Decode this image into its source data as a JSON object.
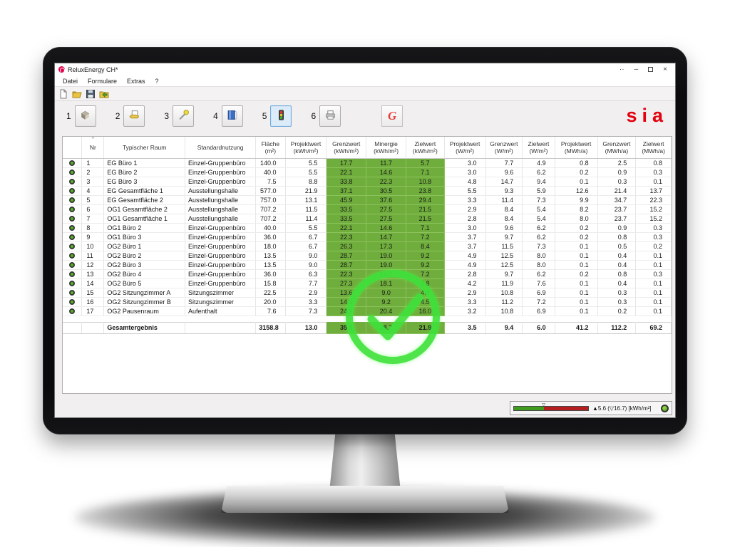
{
  "window": {
    "title": "ReluxEnergy CH*",
    "menus": [
      {
        "label": "Datei"
      },
      {
        "label": "Formulare"
      },
      {
        "label": "Extras"
      },
      {
        "label": "?"
      }
    ],
    "controls": {
      "more": "··",
      "minimize": "–",
      "close": "×"
    }
  },
  "toolbar": {
    "buttons": [
      {
        "num": "1",
        "icon": "building-icon",
        "selected": false
      },
      {
        "num": "2",
        "icon": "hand-document-icon",
        "selected": false
      },
      {
        "num": "3",
        "icon": "tool-icon",
        "selected": false
      },
      {
        "num": "4",
        "icon": "book-icon",
        "selected": false
      },
      {
        "num": "5",
        "icon": "traffic-light-icon",
        "selected": true
      },
      {
        "num": "6",
        "icon": "printer-icon",
        "selected": false
      }
    ],
    "g_button_label": "G",
    "brand": "sia"
  },
  "table": {
    "sort_indicator": "^",
    "headers": [
      {
        "line1": "Nr",
        "line2": ""
      },
      {
        "line1": "Typischer Raum",
        "line2": ""
      },
      {
        "line1": "Standardnutzung",
        "line2": ""
      },
      {
        "line1": "Fläche",
        "line2": "(m²)"
      },
      {
        "line1": "Projektwert",
        "line2": "(kWh/m²)"
      },
      {
        "line1": "Grenzwert",
        "line2": "(kWh/m²)"
      },
      {
        "line1": "Minergie",
        "line2": "(kWh/m²)"
      },
      {
        "line1": "Zielwert",
        "line2": "(kWh/m²)"
      },
      {
        "line1": "Projektwert",
        "line2": "(W/m²)"
      },
      {
        "line1": "Grenzwert",
        "line2": "(W/m²)"
      },
      {
        "line1": "Zielwert",
        "line2": "(W/m²)"
      },
      {
        "line1": "Projektwert",
        "line2": "(MWh/a)"
      },
      {
        "line1": "Grenzwert",
        "line2": "(MWh/a)"
      },
      {
        "line1": "Zielwert",
        "line2": "(MWh/a)"
      }
    ],
    "rows": [
      [
        "1",
        "EG Büro 1",
        "Einzel-Gruppenbüro",
        "140.0",
        "5.5",
        "17.7",
        "11.7",
        "5.7",
        "3.0",
        "7.7",
        "4.9",
        "0.8",
        "2.5",
        "0.8"
      ],
      [
        "2",
        "EG Büro 2",
        "Einzel-Gruppenbüro",
        "40.0",
        "5.5",
        "22.1",
        "14.6",
        "7.1",
        "3.0",
        "9.6",
        "6.2",
        "0.2",
        "0.9",
        "0.3"
      ],
      [
        "3",
        "EG Büro 3",
        "Einzel-Gruppenbüro",
        "7.5",
        "8.8",
        "33.8",
        "22.3",
        "10.8",
        "4.8",
        "14.7",
        "9.4",
        "0.1",
        "0.3",
        "0.1"
      ],
      [
        "4",
        "EG Gesamtfläche 1",
        "Ausstellungshalle",
        "577.0",
        "21.9",
        "37.1",
        "30.5",
        "23.8",
        "5.5",
        "9.3",
        "5.9",
        "12.6",
        "21.4",
        "13.7"
      ],
      [
        "5",
        "EG Gesamtfläche 2",
        "Ausstellungshalle",
        "757.0",
        "13.1",
        "45.9",
        "37.6",
        "29.4",
        "3.3",
        "11.4",
        "7.3",
        "9.9",
        "34.7",
        "22.3"
      ],
      [
        "6",
        "OG1 Gesamtfläche 2",
        "Ausstellungshalle",
        "707.2",
        "11.5",
        "33.5",
        "27.5",
        "21.5",
        "2.9",
        "8.4",
        "5.4",
        "8.2",
        "23.7",
        "15.2"
      ],
      [
        "7",
        "OG1 Gesamtfläche 1",
        "Ausstellungshalle",
        "707.2",
        "11.4",
        "33.5",
        "27.5",
        "21.5",
        "2.8",
        "8.4",
        "5.4",
        "8.0",
        "23.7",
        "15.2"
      ],
      [
        "8",
        "OG1 Büro 2",
        "Einzel-Gruppenbüro",
        "40.0",
        "5.5",
        "22.1",
        "14.6",
        "7.1",
        "3.0",
        "9.6",
        "6.2",
        "0.2",
        "0.9",
        "0.3"
      ],
      [
        "9",
        "OG1 Büro 3",
        "Einzel-Gruppenbüro",
        "36.0",
        "6.7",
        "22.3",
        "14.7",
        "7.2",
        "3.7",
        "9.7",
        "6.2",
        "0.2",
        "0.8",
        "0.3"
      ],
      [
        "10",
        "OG2 Büro 1",
        "Einzel-Gruppenbüro",
        "18.0",
        "6.7",
        "26.3",
        "17.3",
        "8.4",
        "3.7",
        "11.5",
        "7.3",
        "0.1",
        "0.5",
        "0.2"
      ],
      [
        "11",
        "OG2 Büro 2",
        "Einzel-Gruppenbüro",
        "13.5",
        "9.0",
        "28.7",
        "19.0",
        "9.2",
        "4.9",
        "12.5",
        "8.0",
        "0.1",
        "0.4",
        "0.1"
      ],
      [
        "12",
        "OG2 Büro 3",
        "Einzel-Gruppenbüro",
        "13.5",
        "9.0",
        "28.7",
        "19.0",
        "9.2",
        "4.9",
        "12.5",
        "8.0",
        "0.1",
        "0.4",
        "0.1"
      ],
      [
        "13",
        "OG2 Büro 4",
        "Einzel-Gruppenbüro",
        "36.0",
        "6.3",
        "22.3",
        "14.7",
        "7.2",
        "2.8",
        "9.7",
        "6.2",
        "0.2",
        "0.8",
        "0.3"
      ],
      [
        "14",
        "OG2 Büro 5",
        "Einzel-Gruppenbüro",
        "15.8",
        "7.7",
        "27.3",
        "18.1",
        "8.8",
        "4.2",
        "11.9",
        "7.6",
        "0.1",
        "0.4",
        "0.1"
      ],
      [
        "15",
        "OG2 Sitzungzimmer A",
        "Sitzungszimmer",
        "22.5",
        "2.9",
        "13.6",
        "9.0",
        "4.4",
        "2.9",
        "10.8",
        "6.9",
        "0.1",
        "0.3",
        "0.1"
      ],
      [
        "16",
        "OG2 Sitzungzimmer B",
        "Sitzungszimmer",
        "20.0",
        "3.3",
        "14.0",
        "9.2",
        "4.5",
        "3.3",
        "11.2",
        "7.2",
        "0.1",
        "0.3",
        "0.1"
      ],
      [
        "17",
        "OG2 Pausenraum",
        "Aufenthalt",
        "7.6",
        "7.3",
        "24.9",
        "20.4",
        "16.0",
        "3.2",
        "10.8",
        "6.9",
        "0.1",
        "0.2",
        "0.1"
      ]
    ],
    "total": [
      "",
      "Gesamtergebnis",
      "",
      "3158.8",
      "13.0",
      "35.5",
      "28.7",
      "21.9",
      "3.5",
      "9.4",
      "6.0",
      "41.2",
      "112.2",
      "69.2"
    ]
  },
  "statusbar": {
    "gauge_text": "▲5.6 (▽16.7) [kWh/m²]",
    "gauge_marker": "▽",
    "green_percent": 40
  },
  "colors": {
    "green_cell": "#6fae3c",
    "check_green": "#3fe23b",
    "brand_red": "#e3000f",
    "gauge_green": "#3f9c1e",
    "gauge_red": "#b51f1f"
  }
}
